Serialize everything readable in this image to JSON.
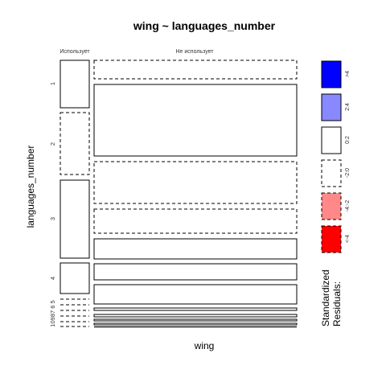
{
  "chart_data": {
    "type": "mosaic",
    "title": "wing ~ languages_number",
    "xlabel": "wing",
    "ylabel": "languages_number",
    "columns": [
      "Использует",
      "Не использует"
    ],
    "rows": [
      "1",
      "2",
      "3",
      "4",
      "5",
      "6",
      "7",
      "8",
      "9",
      "10"
    ],
    "row_label_text": [
      "1",
      "2",
      "3",
      "4",
      "10987 6 5"
    ],
    "cells": [
      {
        "row": "1",
        "col": "Использует",
        "residual_class": "0:2",
        "outline": "solid"
      },
      {
        "row": "1",
        "col": "Не использует",
        "residual_class": "-2:0",
        "outline": "dashed"
      },
      {
        "row": "2",
        "col": "Использует",
        "residual_class": "-2:0",
        "outline": "dashed"
      },
      {
        "row": "2",
        "col": "Не использует",
        "residual_class": "0:2",
        "outline": "solid"
      },
      {
        "row": "3",
        "col": "Использует",
        "residual_class": "0:2",
        "outline": "solid"
      },
      {
        "row": "3",
        "col": "Не использует",
        "residual_class": "-2:0",
        "outline": "dashed"
      },
      {
        "row": "4",
        "col": "Использует",
        "residual_class": "0:2",
        "outline": "solid"
      },
      {
        "row": "4",
        "col": "Не использует",
        "residual_class": "0:2",
        "outline": "solid"
      },
      {
        "row": "5",
        "col": "Использует",
        "residual_class": "-2:0",
        "outline": "dashed"
      },
      {
        "row": "5",
        "col": "Не использует",
        "residual_class": "0:2",
        "outline": "solid"
      },
      {
        "row": "6",
        "col": "Использует",
        "residual_class": "-2:0",
        "outline": "dashed"
      },
      {
        "row": "6",
        "col": "Не использует",
        "residual_class": "0:2",
        "outline": "solid"
      },
      {
        "row": "7",
        "col": "Использует",
        "residual_class": "-2:0",
        "outline": "dashed"
      },
      {
        "row": "7",
        "col": "Не использует",
        "residual_class": "0:2",
        "outline": "solid"
      },
      {
        "row": "8",
        "col": "Использует",
        "residual_class": "-2:0",
        "outline": "dashed"
      },
      {
        "row": "8",
        "col": "Не использует",
        "residual_class": "0:2",
        "outline": "solid"
      },
      {
        "row": "9",
        "col": "Использует",
        "residual_class": "-2:0",
        "outline": "dashed"
      },
      {
        "row": "9",
        "col": "Не использует",
        "residual_class": "0:2",
        "outline": "solid"
      },
      {
        "row": "10",
        "col": "Использует",
        "residual_class": "-2:0",
        "outline": "dashed"
      },
      {
        "row": "10",
        "col": "Не использует",
        "residual_class": "0:2",
        "outline": "solid"
      }
    ],
    "legend": {
      "title_lines": [
        "Standardized",
        "Residuals:"
      ],
      "entries": [
        {
          "label": ">4",
          "color": "#0000ff",
          "outline": "solid"
        },
        {
          "label": "2:4",
          "color": "#8888ff",
          "outline": "solid"
        },
        {
          "label": "0:2",
          "color": "#ffffff",
          "outline": "solid"
        },
        {
          "label": "-2:0",
          "color": "#ffffff",
          "outline": "dashed"
        },
        {
          "label": "-4:-2",
          "color": "#ff8888",
          "outline": "dashed"
        },
        {
          "label": "<-4",
          "color": "#ff0000",
          "outline": "dashed"
        }
      ]
    }
  }
}
